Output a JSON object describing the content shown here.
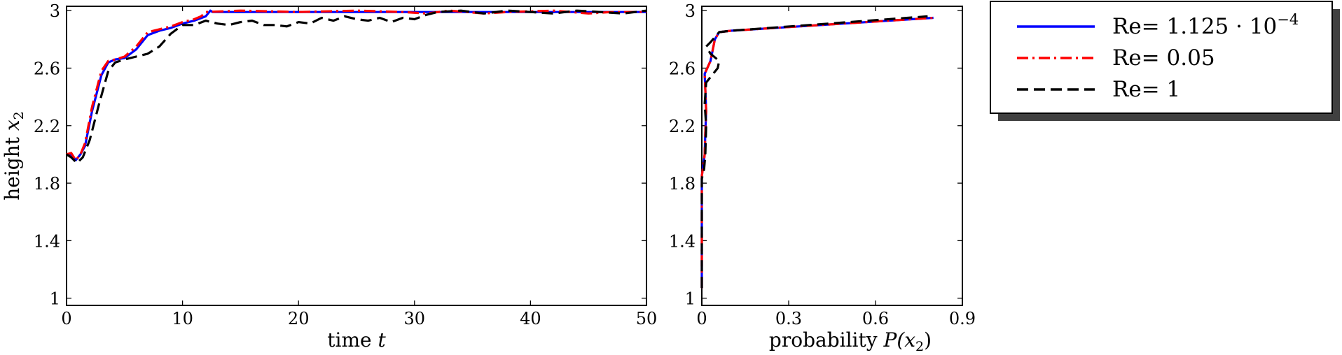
{
  "chart_data": [
    {
      "type": "line",
      "xlabel": "time",
      "xlabel_var": "t",
      "ylabel": "height",
      "ylabel_var": "x",
      "ylabel_sub": "2",
      "xlim": [
        0,
        50
      ],
      "ylim": [
        0.95,
        3.03
      ],
      "xticks": [
        0,
        10,
        20,
        30,
        40,
        50
      ],
      "yticks": [
        1,
        1.4,
        1.8,
        2.2,
        2.6,
        3
      ],
      "ytick_labels": [
        "1",
        "1.4",
        "1.8",
        "2.2",
        "2.6",
        "3"
      ],
      "grid": false,
      "series": [
        {
          "name": "Re= 1.125 · 10^−4",
          "color": "#0000ff",
          "dash": "solid",
          "x": [
            0,
            0.4,
            0.8,
            1.2,
            1.6,
            2.2,
            3.0,
            3.6,
            4.2,
            5.0,
            6.0,
            7.0,
            8.0,
            9.0,
            10.0,
            11.0,
            12.0,
            12.4,
            12.6,
            12.8,
            50
          ],
          "y": [
            2.0,
            2.0,
            1.96,
            2.0,
            2.06,
            2.3,
            2.55,
            2.64,
            2.66,
            2.67,
            2.73,
            2.83,
            2.86,
            2.88,
            2.91,
            2.93,
            2.96,
            3.0,
            2.99,
            2.99,
            2.99
          ]
        },
        {
          "name": "Re= 0.05",
          "color": "#ff0000",
          "dash": "dashdot",
          "x": [
            0,
            0.4,
            0.8,
            1.2,
            1.6,
            2.2,
            3.0,
            3.6,
            4.2,
            5.0,
            6.0,
            7.0,
            8.0,
            9.0,
            10.0,
            11.0,
            11.6,
            12.0,
            15,
            20,
            25,
            29,
            31,
            33,
            36,
            38,
            42,
            45,
            47,
            50
          ],
          "y": [
            2.0,
            2.01,
            1.96,
            2.0,
            2.08,
            2.33,
            2.58,
            2.65,
            2.66,
            2.68,
            2.75,
            2.85,
            2.87,
            2.89,
            2.92,
            2.94,
            2.96,
            2.99,
            3.0,
            2.99,
            3.0,
            2.99,
            2.98,
            3.0,
            2.98,
            2.99,
            3.0,
            2.98,
            2.99,
            2.99
          ]
        },
        {
          "name": "Re= 1",
          "color": "#000000",
          "dash": "dashed",
          "x": [
            0,
            0.4,
            0.9,
            1.4,
            2.0,
            2.8,
            3.6,
            4.2,
            5.0,
            6.0,
            7.0,
            8.0,
            9.0,
            10.0,
            11.0,
            12.0,
            13.0,
            14.0,
            15.0,
            16.0,
            17.0,
            18.0,
            19.0,
            20.0,
            21.0,
            22.0,
            23.0,
            24.0,
            25.0,
            26.0,
            27.0,
            28.0,
            29.0,
            30.0,
            31.0,
            32.0,
            34.0,
            36.0,
            38.0,
            40.0,
            42.0,
            44.0,
            46.0,
            48.0,
            50.0
          ],
          "y": [
            2.0,
            1.98,
            1.94,
            1.98,
            2.1,
            2.35,
            2.58,
            2.64,
            2.66,
            2.68,
            2.7,
            2.75,
            2.84,
            2.9,
            2.9,
            2.93,
            2.91,
            2.9,
            2.92,
            2.93,
            2.9,
            2.9,
            2.89,
            2.92,
            2.91,
            2.95,
            2.93,
            2.96,
            2.94,
            2.93,
            2.95,
            2.92,
            2.95,
            2.94,
            2.97,
            2.99,
            3.0,
            2.98,
            3.0,
            2.99,
            2.98,
            3.0,
            2.99,
            2.98,
            3.0
          ]
        }
      ]
    },
    {
      "type": "line",
      "xlabel": "probability",
      "xlabel_var": "P(x",
      "xlabel_sub": "2",
      "xlabel_close": ")",
      "ylabel": "",
      "xlim": [
        0,
        0.9
      ],
      "ylim": [
        0.95,
        3.03
      ],
      "xticks": [
        0,
        0.3,
        0.6,
        0.9
      ],
      "xtick_labels": [
        "0",
        "0.3",
        "0.6",
        "0.9"
      ],
      "yticks": [
        1,
        1.4,
        1.8,
        2.2,
        2.6,
        3
      ],
      "ytick_labels": [
        "1",
        "1.4",
        "1.8",
        "2.2",
        "2.6",
        "3"
      ],
      "grid": false,
      "series": [
        {
          "name": "Re= 1.125 · 10^−4",
          "color": "#0000ff",
          "dash": "solid",
          "x": [
            0.0,
            0.0,
            0.005,
            0.01,
            0.012,
            0.015,
            0.012,
            0.01,
            0.03,
            0.045,
            0.06,
            0.1,
            0.8
          ],
          "y": [
            1.07,
            1.85,
            1.92,
            2.0,
            2.15,
            2.3,
            2.45,
            2.56,
            2.65,
            2.8,
            2.85,
            2.86,
            2.95
          ]
        },
        {
          "name": "Re= 0.05",
          "color": "#ff0000",
          "dash": "dashdot",
          "x": [
            0.0,
            0.0,
            0.005,
            0.01,
            0.012,
            0.015,
            0.012,
            0.01,
            0.03,
            0.045,
            0.06,
            0.1,
            0.8
          ],
          "y": [
            1.07,
            1.85,
            1.92,
            2.0,
            2.15,
            2.3,
            2.45,
            2.56,
            2.65,
            2.8,
            2.85,
            2.86,
            2.95
          ]
        },
        {
          "name": "Re= 1",
          "color": "#000000",
          "dash": "dashed",
          "x": [
            0.0,
            0.0,
            0.008,
            0.012,
            0.015,
            0.01,
            0.015,
            0.055,
            0.06,
            0.03,
            0.015,
            0.03,
            0.06,
            0.1,
            0.78
          ],
          "y": [
            1.07,
            1.83,
            1.9,
            2.0,
            2.2,
            2.35,
            2.5,
            2.6,
            2.65,
            2.7,
            2.75,
            2.78,
            2.85,
            2.86,
            2.96
          ]
        }
      ]
    }
  ],
  "legend": {
    "placement": "right",
    "entries": [
      {
        "label_main": "Re= 1.125 · 10",
        "label_sup": "−4",
        "color": "#0000ff",
        "dash": "solid"
      },
      {
        "label_main": "Re= 0.05",
        "label_sup": "",
        "color": "#ff0000",
        "dash": "dashdot"
      },
      {
        "label_main": "Re= 1",
        "label_sup": "",
        "color": "#000000",
        "dash": "dashed"
      }
    ]
  }
}
